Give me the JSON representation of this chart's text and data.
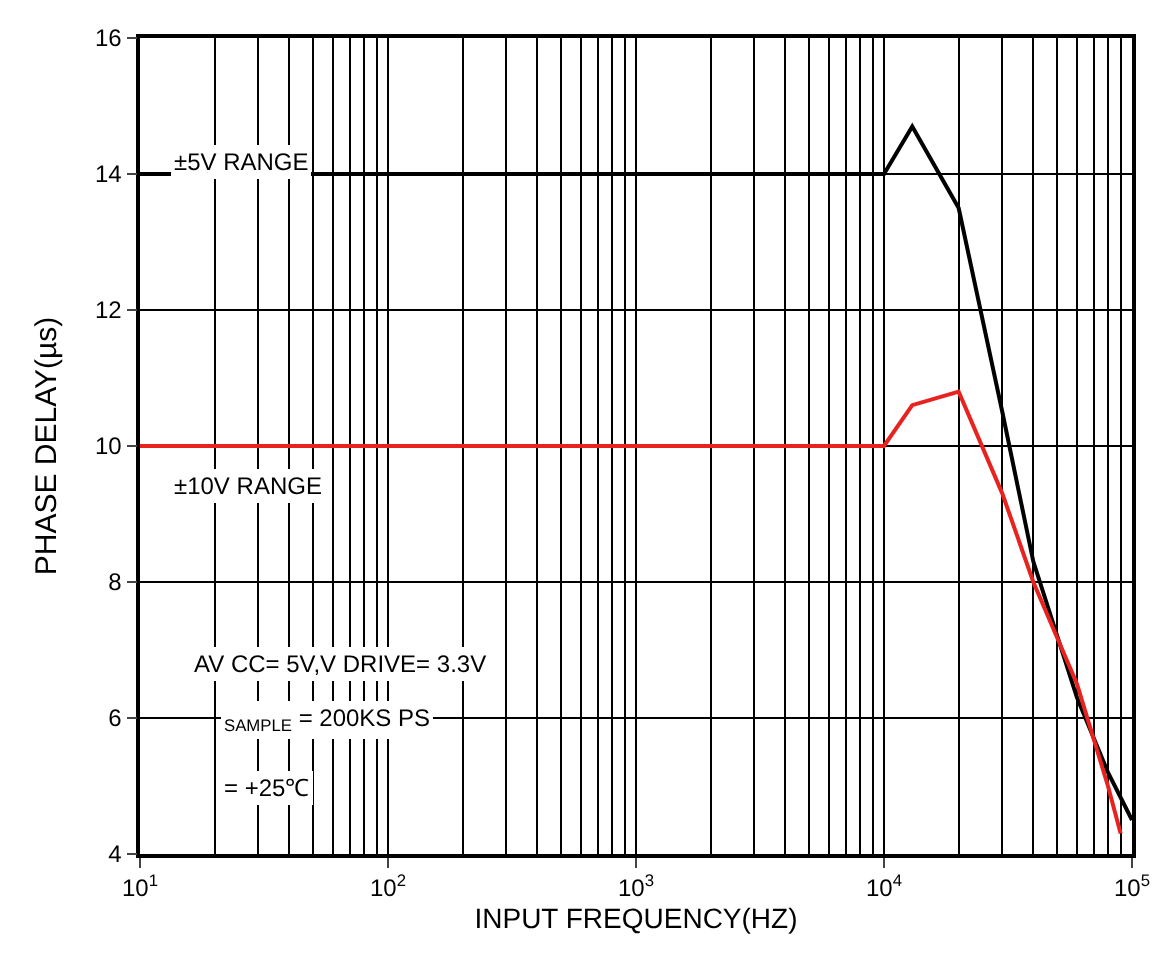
{
  "chart_data": {
    "type": "line",
    "xlabel": "INPUT FREQUENCY(HZ)",
    "ylabel": "PHASE DELAY(µs)",
    "log": "x",
    "grid": true,
    "marker": "none",
    "line_style": "solid",
    "xlim": [
      10,
      100000
    ],
    "ylim": [
      4,
      16
    ],
    "xticks": [
      {
        "value": 10,
        "label": "10$^{1}$"
      },
      {
        "value": 100,
        "label": "10$^{2}$"
      },
      {
        "value": 1000,
        "label": "10$^{3}$"
      },
      {
        "value": 10000,
        "label": "10$^{4}$"
      },
      {
        "value": 100000,
        "label": "10$^{5}$"
      }
    ],
    "yticks": [
      4,
      6,
      8,
      10,
      12,
      14,
      16
    ],
    "series": [
      {
        "color": "#000000",
        "x": [
          10,
          10000,
          13000,
          20000,
          30000,
          40000,
          60000,
          80000,
          100000
        ],
        "values": [
          14,
          14,
          14.7,
          13.5,
          10.5,
          8.3,
          6.3,
          5.2,
          4.5
        ]
      },
      {
        "color": "#e8231f",
        "x": [
          10,
          10000,
          13000,
          20000,
          30000,
          40000,
          60000,
          80000,
          90000
        ],
        "values": [
          10,
          10,
          10.6,
          10.8,
          9.3,
          8.0,
          6.5,
          5.0,
          4.3
        ]
      }
    ],
    "annotations": [
      "±5V RANGE",
      "±10V RANGE",
      "AV CC= 5V,V DRIVE= 3.3V",
      "$_{SAMPLE}$ = 200KS PS",
      "= +25℃"
    ]
  }
}
